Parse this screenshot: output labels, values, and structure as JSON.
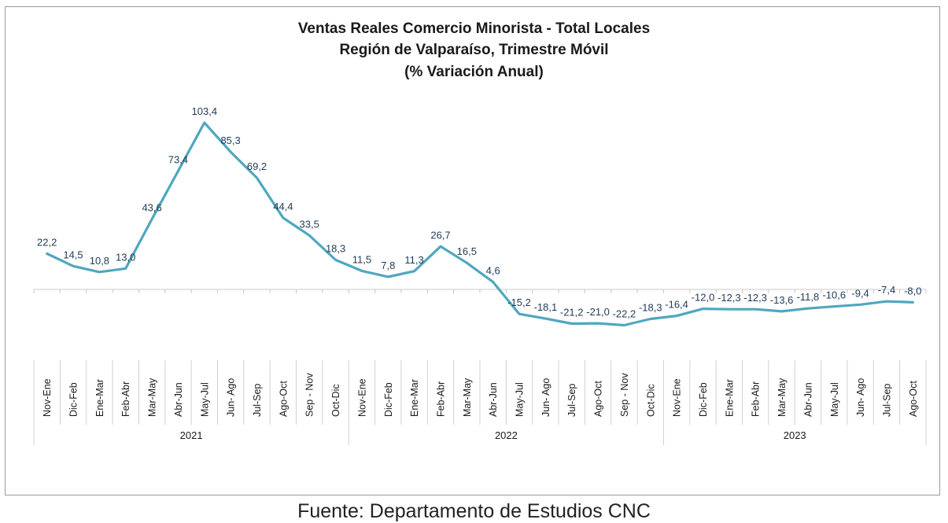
{
  "chart_data": {
    "type": "line",
    "title": "Ventas Reales Comercio Minorista - Total Locales",
    "subtitle": "Región de Valparaíso, Trimestre Móvil",
    "subtitle2": "(% Variación Anual)",
    "categories": [
      "Nov-Ene",
      "Dic-Feb",
      "Ene-Mar",
      "Feb-Abr",
      "Mar-May",
      "Abr-Jun",
      "May-Jul",
      "Jun- Ago",
      "Jul-Sep",
      "Ago-Oct",
      "Sep - Nov",
      "Oct-Dic",
      "Nov-Ene",
      "Dic-Feb",
      "Ene-Mar",
      "Feb-Abr",
      "Mar-May",
      "Abr-Jun",
      "May-Jul",
      "Jun- Ago",
      "Jul-Sep",
      "Ago-Oct",
      "Sep - Nov",
      "Oct-Dic",
      "Nov-Ene",
      "Dic-Feb",
      "Ene-Mar",
      "Feb-Abr",
      "Mar-May",
      "Abr-Jun",
      "May-Jul",
      "Jun- Ago",
      "Jul-Sep",
      "Ago-Oct"
    ],
    "values": [
      22.2,
      14.5,
      10.8,
      13.0,
      43.6,
      73.4,
      103.4,
      85.3,
      69.2,
      44.4,
      33.5,
      18.3,
      11.5,
      7.8,
      11.3,
      26.7,
      16.5,
      4.6,
      -15.2,
      -18.1,
      -21.2,
      -21.0,
      -22.2,
      -18.3,
      -16.4,
      -12.0,
      -12.3,
      -12.3,
      -13.6,
      -11.8,
      -10.6,
      -9.4,
      -7.4,
      -8.0
    ],
    "labels": [
      "22,2",
      "14,5",
      "10,8",
      "13,0",
      "43,6",
      "73,4",
      "103,4",
      "85,3",
      "69,2",
      "44,4",
      "33,5",
      "18,3",
      "11,5",
      "7,8",
      "11,3",
      "26,7",
      "16,5",
      "4,6",
      "-15,2",
      "-18,1",
      "-21,2",
      "-21,0",
      "-22,2",
      "-18,3",
      "-16,4",
      "-12,0",
      "-12,3",
      "-12,3",
      "-13,6",
      "-11,8",
      "-10,6",
      "-9,4",
      "-7,4",
      "-8,0"
    ],
    "years": [
      {
        "label": "2021",
        "start": 0,
        "count": 12
      },
      {
        "label": "2022",
        "start": 12,
        "count": 12
      },
      {
        "label": "2023",
        "start": 24,
        "count": 10
      }
    ],
    "ylim": [
      -45,
      110
    ],
    "line_color": "#4fa7bf",
    "grid": false,
    "legend": "none"
  },
  "source": "Fuente: Departamento de Estudios CNC"
}
